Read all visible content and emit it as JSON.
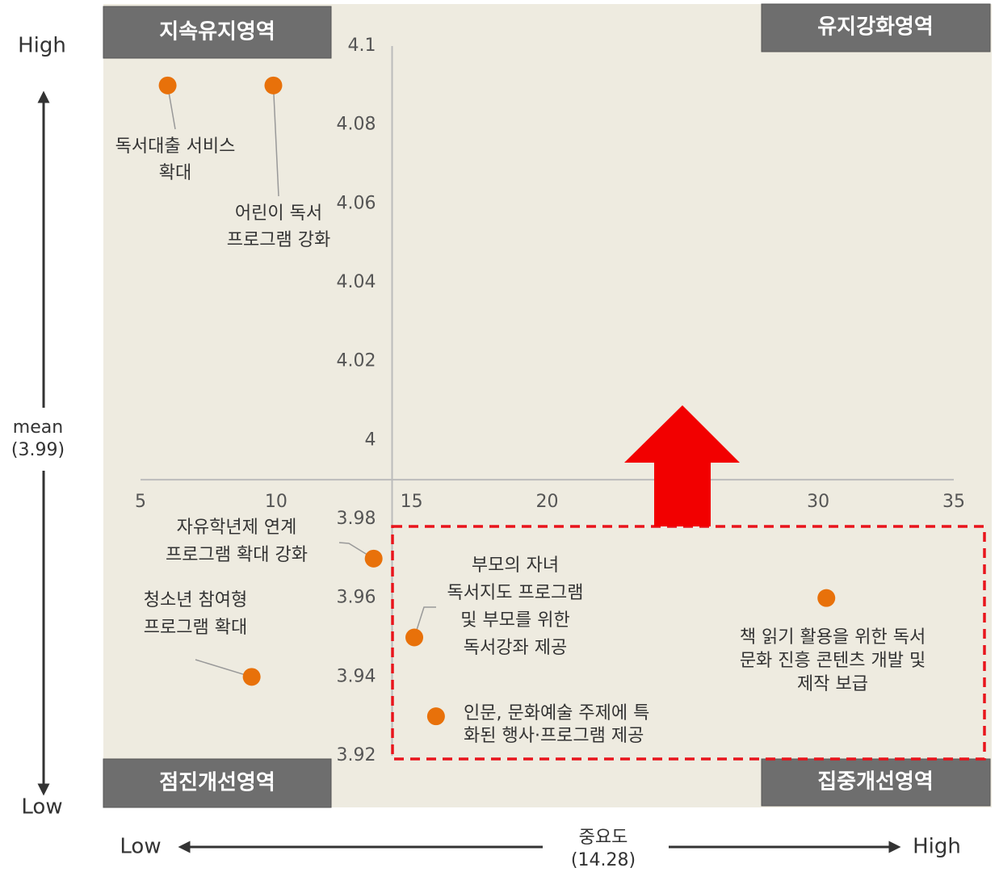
{
  "chart_data": {
    "type": "scatter",
    "quadrants": [
      "지속유지영역",
      "유지강화영역",
      "점진개선영역",
      "집중개선영역"
    ],
    "y_axis": {
      "high": "High",
      "low": "Low",
      "title": "mean",
      "mean": {
        "value": 3.99,
        "label": "(3.99)"
      }
    },
    "x_axis": {
      "low": "Low",
      "high": "High",
      "title": "중요도",
      "mean": {
        "value": 14.28,
        "label": "(14.28)"
      }
    },
    "xlim": [
      5,
      35
    ],
    "ylim": [
      3.92,
      4.1
    ],
    "xticks": [
      5,
      10,
      15,
      20,
      30,
      35
    ],
    "yticks": [
      4.1,
      4.08,
      4.06,
      4.04,
      4.02,
      4,
      3.98,
      3.96,
      3.94,
      3.92
    ],
    "color": "#e8710a",
    "points": [
      {
        "label": [
          "독서대출 서비스",
          "확대"
        ],
        "x": 6.0,
        "y": 4.09
      },
      {
        "label": [
          "어린이 독서",
          "프로그램 강화"
        ],
        "x": 9.9,
        "y": 4.09
      },
      {
        "label": [
          "자유학년제 연계",
          "프로그램 확대 강화"
        ],
        "x": 13.6,
        "y": 3.97
      },
      {
        "label": [
          "청소년 참여형",
          "프로그램 확대"
        ],
        "x": 9.1,
        "y": 3.94
      },
      {
        "label": [
          "부모의 자녀",
          "독서지도 프로그램",
          "및 부모를 위한",
          "독서강좌 제공"
        ],
        "x": 15.1,
        "y": 3.95
      },
      {
        "label": [
          "인문, 문화예술 주제에 특",
          "화된 행사·프로그램 제공"
        ],
        "x": 15.9,
        "y": 3.93
      },
      {
        "label": [
          "책 읽기 활용을 위한 독서",
          "문화 진흥 콘텐츠 개발 및",
          "제작 보급"
        ],
        "x": 30.3,
        "y": 3.96
      }
    ]
  }
}
